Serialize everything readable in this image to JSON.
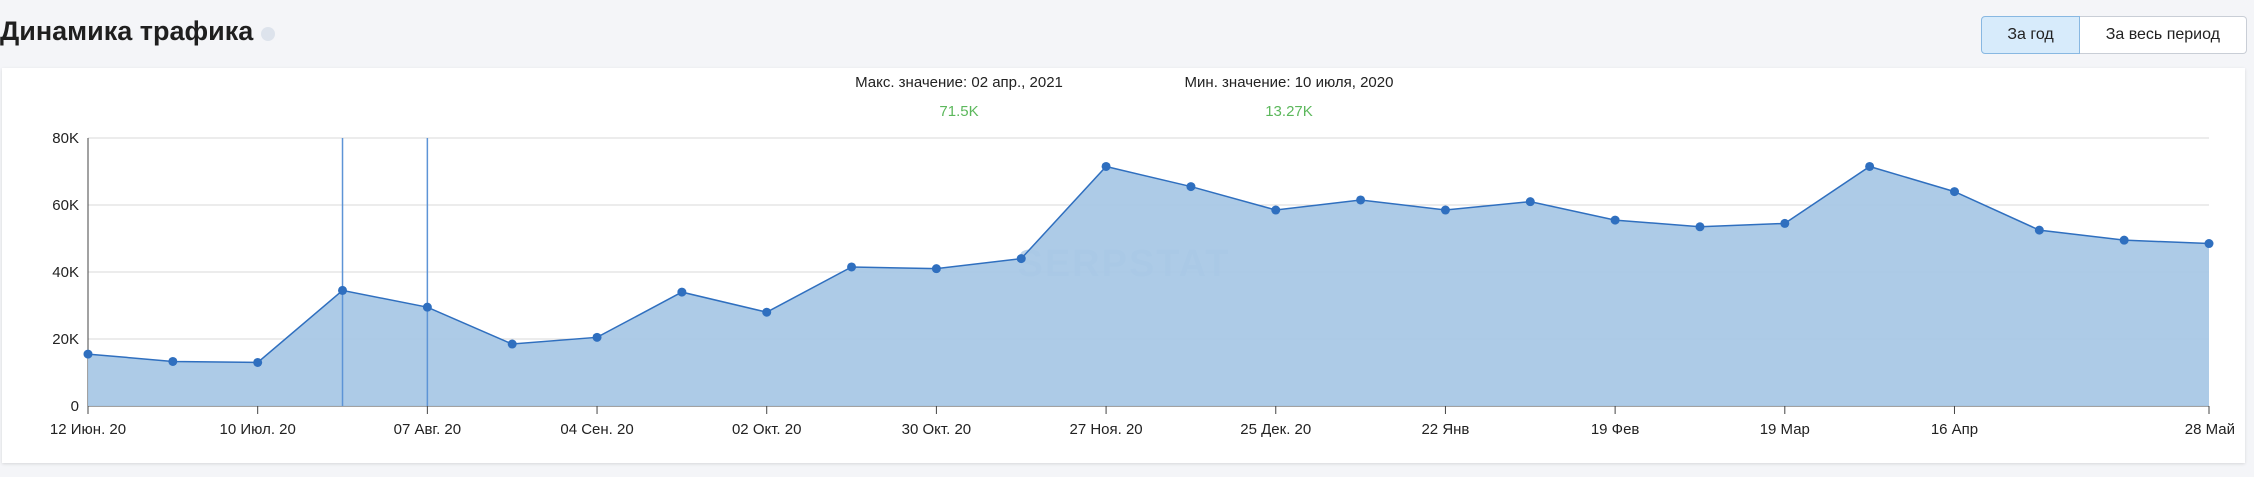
{
  "header": {
    "title": "Динамика трафика",
    "info_icon": "info-icon",
    "period_buttons": [
      {
        "label": "За год",
        "active": true
      },
      {
        "label": "За весь период",
        "active": false
      }
    ]
  },
  "stats": {
    "max_label": "Макс. значение: 02 апр., 2021",
    "max_value": "71.5K",
    "min_label": "Мин. значение: 10 июля, 2020",
    "min_value": "13.27K"
  },
  "watermark": "SERPSTAT",
  "colors": {
    "accent": "#2f6fbf",
    "area_fill": "#a9c8e6",
    "stat_value": "#5cb85c",
    "marker_lines": "#5d94d6"
  },
  "chart_data": {
    "type": "area",
    "title": "",
    "xlabel": "",
    "ylabel": "",
    "ylim": [
      0,
      80000
    ],
    "y_ticks": [
      0,
      20000,
      40000,
      60000,
      80000
    ],
    "y_tick_labels": [
      "0",
      "20K",
      "40K",
      "60K",
      "80K"
    ],
    "grid": true,
    "x_ticks": [
      {
        "index": 0,
        "label": "12 Июн. 20"
      },
      {
        "index": 2,
        "label": "10 Июл. 20"
      },
      {
        "index": 4,
        "label": "07 Авг. 20"
      },
      {
        "index": 6,
        "label": "04 Сен. 20"
      },
      {
        "index": 8,
        "label": "02 Окт. 20"
      },
      {
        "index": 10,
        "label": "30 Окт. 20"
      },
      {
        "index": 12,
        "label": "27 Ноя. 20"
      },
      {
        "index": 14,
        "label": "25 Дек. 20"
      },
      {
        "index": 16,
        "label": "22 Янв"
      },
      {
        "index": 18,
        "label": "19 Фев"
      },
      {
        "index": 20,
        "label": "19 Мар"
      },
      {
        "index": 22,
        "label": "16 Апр"
      },
      {
        "index": 25,
        "label": "28 Май"
      }
    ],
    "marker_indices": [
      3,
      4
    ],
    "series": [
      {
        "values": [
          15500,
          13300,
          13000,
          34500,
          29500,
          18500,
          20500,
          34000,
          28000,
          41500,
          41000,
          44000,
          71500,
          65500,
          58500,
          61500,
          58500,
          61000,
          55500,
          53500,
          54500,
          71500,
          64000,
          52500,
          49500,
          48500
        ]
      }
    ]
  }
}
